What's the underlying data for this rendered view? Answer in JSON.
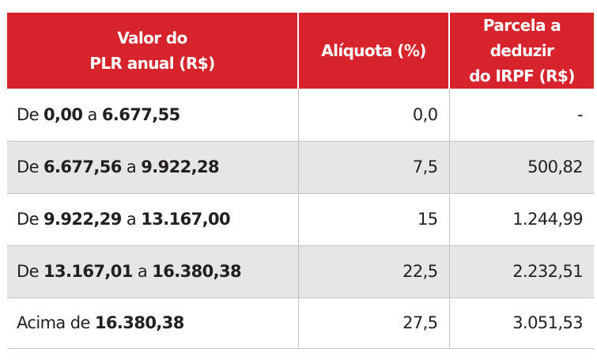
{
  "header": {
    "col1_line1": "Valor do",
    "col1_line2": "PLR anual (R$)",
    "col2": "Alíquota (%)",
    "col3_line1": "Parcela a deduzir",
    "col3_line2": "do IRPF (R$)"
  },
  "rows": [
    {
      "prefix": "De ",
      "from": "0,00",
      "joiner": " a ",
      "to": "6.677,55",
      "rate": "0,0",
      "deduction": "-"
    },
    {
      "prefix": "De ",
      "from": "6.677,56",
      "joiner": " a ",
      "to": "9.922,28",
      "rate": "7,5",
      "deduction": "500,82"
    },
    {
      "prefix": "De ",
      "from": "9.922,29",
      "joiner": " a ",
      "to": "13.167,00",
      "rate": "15",
      "deduction": "1.244,99"
    },
    {
      "prefix": "De ",
      "from": "13.167,01",
      "joiner": " a ",
      "to": "16.380,38",
      "rate": "22,5",
      "deduction": "2.232,51"
    },
    {
      "prefix": "Acima de ",
      "from": "16.380,38",
      "rate": "27,5",
      "deduction": "3.051,53"
    }
  ],
  "colors": {
    "header_background": "#d7232b",
    "header_text": "#ffffff",
    "stripe": "#e6e6e7",
    "text": "#231f20"
  }
}
